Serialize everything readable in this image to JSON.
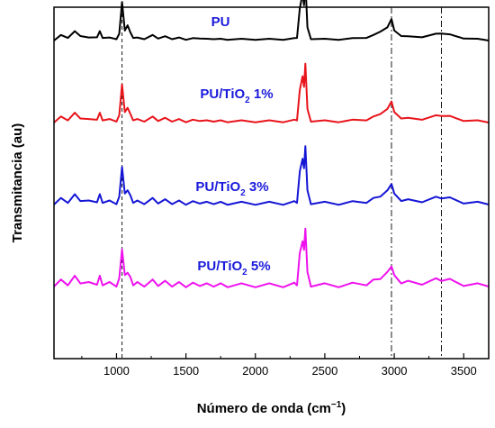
{
  "chart_data": {
    "type": "line",
    "xlabel": {
      "main": "Número de onda (cm",
      "sup": "−1",
      "tail": ")"
    },
    "ylabel": "Transmitancia (au)",
    "xlim": [
      550,
      3680
    ],
    "xticks": [
      1000,
      1500,
      2000,
      2500,
      3000,
      3500
    ],
    "xtick_labels": [
      "1000",
      "1500",
      "2000",
      "2500",
      "3000",
      "3500"
    ],
    "y_ticks_shown": false,
    "grid": false,
    "reference_lines": [
      {
        "x": 1040,
        "style": "dashed"
      },
      {
        "x": 2980,
        "style": "dash-dot"
      },
      {
        "x": 3340,
        "style": "dash-dot"
      }
    ],
    "series": [
      {
        "name": "PU",
        "label": {
          "main": "PU"
        },
        "color": "#000000",
        "label_color": "#1a1adb",
        "baseline": 0
      },
      {
        "name": "PU/TiO2 1%",
        "label": {
          "main": "PU/TiO",
          "sub": "2",
          "tail": " 1%"
        },
        "color": "#e8141b",
        "label_color": "#1a1adb",
        "baseline": -1
      },
      {
        "name": "PU/TiO2 3%",
        "label": {
          "main": "PU/TiO",
          "sub": "2",
          "tail": " 3%"
        },
        "color": "#1515d6",
        "label_color": "#1a1adb",
        "baseline": -2
      },
      {
        "name": "PU/TiO2 5%",
        "label": {
          "main": "PU/TiO",
          "sub": "2",
          "tail": " 5%"
        },
        "color": "#ee12ee",
        "label_color": "#1a1adb",
        "baseline": -3
      }
    ],
    "shared_profile": {
      "x": [
        550,
        600,
        650,
        700,
        740,
        800,
        860,
        880,
        900,
        950,
        1000,
        1020,
        1040,
        1060,
        1080,
        1100,
        1120,
        1150,
        1200,
        1260,
        1300,
        1350,
        1400,
        1450,
        1500,
        1550,
        1600,
        1650,
        1700,
        1750,
        1800,
        1900,
        2000,
        2100,
        2200,
        2280,
        2300,
        2320,
        2340,
        2350,
        2360,
        2375,
        2400,
        2500,
        2600,
        2700,
        2800,
        2850,
        2900,
        2950,
        2980,
        3000,
        3050,
        3100,
        3200,
        3300,
        3340,
        3400,
        3500,
        3600,
        3680
      ],
      "y": [
        0.0,
        -0.08,
        -0.05,
        -0.14,
        -0.08,
        -0.04,
        -0.06,
        -0.14,
        -0.05,
        -0.04,
        -0.03,
        -0.1,
        -0.62,
        -0.15,
        -0.25,
        -0.12,
        -0.05,
        -0.04,
        -0.03,
        -0.08,
        -0.04,
        -0.06,
        -0.03,
        -0.04,
        -0.02,
        -0.03,
        -0.04,
        -0.02,
        -0.03,
        -0.02,
        -0.02,
        -0.02,
        -0.02,
        -0.02,
        -0.02,
        -0.03,
        -0.05,
        -0.5,
        -0.75,
        -0.55,
        -0.95,
        -0.2,
        -0.03,
        -0.02,
        -0.02,
        -0.03,
        -0.05,
        -0.08,
        -0.15,
        -0.2,
        -0.35,
        -0.15,
        -0.08,
        -0.06,
        -0.06,
        -0.1,
        -0.12,
        -0.09,
        -0.04,
        -0.02,
        0.0
      ]
    }
  }
}
